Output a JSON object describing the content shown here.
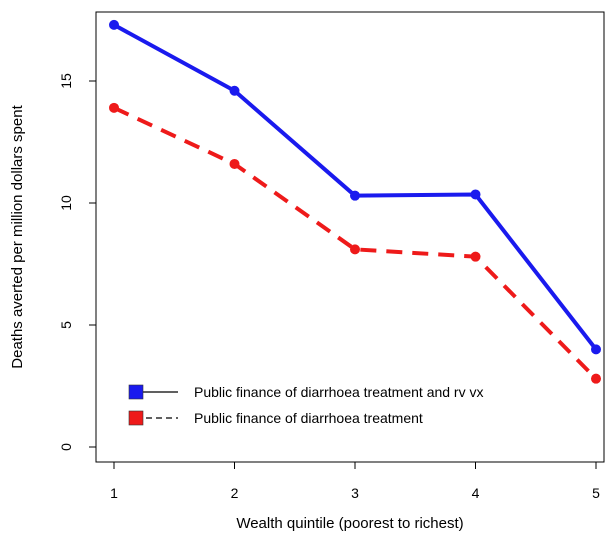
{
  "chart_data": {
    "type": "line",
    "xlabel": "Wealth quintile (poorest to richest)",
    "ylabel": "Deaths averted per million dollars spent",
    "x": [
      1,
      2,
      3,
      4,
      5
    ],
    "xlim": [
      1,
      5
    ],
    "ylim": [
      0,
      18
    ],
    "x_ticks": [
      "1",
      "2",
      "3",
      "4",
      "5"
    ],
    "y_ticks": [
      "0",
      "5",
      "10",
      "15"
    ],
    "grid": false,
    "legend_position": "bottom-left",
    "series": [
      {
        "name": "Public finance of diarrhoea treatment and rv vx",
        "values": [
          17.3,
          14.6,
          10.3,
          10.35,
          4.0
        ],
        "color": "#1a1aee",
        "line_style": "solid",
        "marker": "filled-circle"
      },
      {
        "name": "Public finance of diarrhoea treatment",
        "values": [
          13.9,
          11.6,
          8.1,
          7.8,
          2.8
        ],
        "color": "#ee1a1a",
        "line_style": "dashed",
        "marker": "filled-circle"
      }
    ]
  }
}
